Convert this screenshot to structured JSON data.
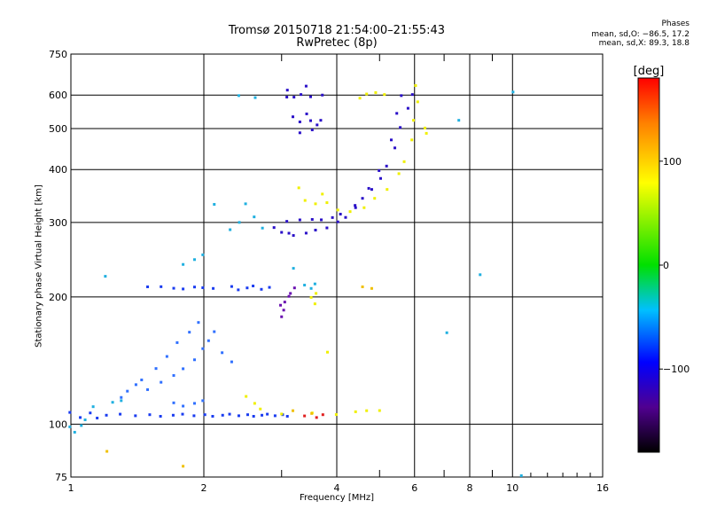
{
  "header": {
    "title_line1": "Tromsø 20150718 21:54:00–21:55:43",
    "title_line2": "RwPretec (8p)",
    "phases_title": "Phases",
    "phases_o": "mean, sd,O: −86.5, 17.2",
    "phases_x": "mean, sd,X:  89.3, 18.8"
  },
  "colors": {
    "blue": "#1a3cf0",
    "darkblue": "#2a10c8",
    "midblue": "#3070ff",
    "cyan": "#20b0e0",
    "yellow": "#f0f000",
    "orange": "#f0c000",
    "purple": "#6a10b0",
    "red": "#e02020"
  },
  "chart_data": {
    "type": "scatter",
    "xlabel": "Frequency [MHz]",
    "ylabel": "Stationary phase Virtual Height [km]",
    "x_scale": "log",
    "y_scale": "log",
    "xlim": [
      1,
      16
    ],
    "ylim": [
      75,
      750
    ],
    "x_ticks": [
      1,
      2,
      4,
      6,
      8,
      10,
      16
    ],
    "x_minor_ticks": [
      3,
      5,
      7,
      9
    ],
    "y_ticks": [
      75,
      100,
      200,
      300,
      400,
      500,
      600,
      750
    ],
    "grid": true,
    "colorbar": {
      "label": "[deg]",
      "ticks": [
        100,
        0,
        -100
      ],
      "range": [
        -180,
        180
      ]
    },
    "series": [
      {
        "color": "blue",
        "points": [
          [
            1.0,
            106
          ],
          [
            1.05,
            104
          ],
          [
            1.1,
            106
          ],
          [
            1.15,
            104
          ],
          [
            1.2,
            105
          ],
          [
            1.3,
            105
          ],
          [
            1.4,
            105
          ],
          [
            1.5,
            105
          ],
          [
            1.6,
            105
          ],
          [
            1.7,
            105
          ],
          [
            1.8,
            105
          ],
          [
            1.9,
            105
          ],
          [
            2.0,
            105
          ],
          [
            2.1,
            105
          ],
          [
            2.2,
            105
          ],
          [
            2.3,
            105
          ],
          [
            2.4,
            105
          ],
          [
            2.5,
            105
          ],
          [
            2.6,
            105
          ],
          [
            2.7,
            105
          ],
          [
            2.8,
            105
          ],
          [
            2.9,
            105
          ],
          [
            3.0,
            105
          ],
          [
            3.1,
            105
          ]
        ]
      },
      {
        "color": "cyan",
        "points": [
          [
            1.0,
            98
          ],
          [
            1.02,
            96
          ],
          [
            1.05,
            99
          ],
          [
            1.08,
            103
          ],
          [
            1.12,
            110
          ],
          [
            1.25,
            112
          ],
          [
            1.3,
            114
          ],
          [
            2.1,
            330
          ],
          [
            2.3,
            290
          ],
          [
            2.4,
            300
          ],
          [
            2.5,
            330
          ],
          [
            2.6,
            310
          ],
          [
            2.7,
            290
          ],
          [
            1.8,
            240
          ],
          [
            1.9,
            245
          ],
          [
            2.0,
            250
          ],
          [
            2.4,
            600
          ],
          [
            2.6,
            590
          ],
          [
            1.2,
            225
          ]
        ]
      },
      {
        "color": "midblue",
        "points": [
          [
            1.5,
            120
          ],
          [
            1.6,
            126
          ],
          [
            1.7,
            130
          ],
          [
            1.8,
            136
          ],
          [
            1.9,
            142
          ],
          [
            2.0,
            150
          ],
          [
            2.05,
            158
          ],
          [
            2.1,
            165
          ],
          [
            1.95,
            175
          ],
          [
            1.85,
            165
          ],
          [
            1.75,
            155
          ],
          [
            1.65,
            145
          ],
          [
            1.55,
            135
          ],
          [
            1.45,
            128
          ],
          [
            1.4,
            124
          ],
          [
            1.35,
            119
          ],
          [
            1.3,
            116
          ],
          [
            1.7,
            112
          ],
          [
            1.8,
            111
          ],
          [
            1.9,
            112
          ],
          [
            2.0,
            113
          ],
          [
            2.2,
            148
          ],
          [
            2.3,
            140
          ]
        ]
      },
      {
        "color": "blue",
        "points": [
          [
            1.5,
            210
          ],
          [
            1.6,
            212
          ],
          [
            1.7,
            209
          ],
          [
            1.8,
            210
          ],
          [
            1.9,
            211
          ],
          [
            2.0,
            209
          ],
          [
            2.1,
            210
          ],
          [
            2.3,
            211
          ],
          [
            2.4,
            209
          ],
          [
            2.5,
            210
          ],
          [
            2.6,
            211
          ],
          [
            2.7,
            209
          ],
          [
            2.8,
            210
          ]
        ]
      },
      {
        "color": "darkblue",
        "points": [
          [
            2.9,
            290
          ],
          [
            3.0,
            285
          ],
          [
            3.1,
            282
          ],
          [
            3.2,
            281
          ],
          [
            3.4,
            283
          ],
          [
            3.6,
            286
          ],
          [
            3.8,
            292
          ],
          [
            4.0,
            300
          ],
          [
            4.2,
            310
          ],
          [
            4.4,
            325
          ],
          [
            4.6,
            340
          ],
          [
            4.8,
            360
          ],
          [
            5.0,
            380
          ],
          [
            5.2,
            410
          ],
          [
            5.4,
            450
          ],
          [
            5.6,
            500
          ],
          [
            5.8,
            560
          ],
          [
            5.9,
            600
          ]
        ]
      },
      {
        "color": "darkblue",
        "points": [
          [
            3.1,
            300
          ],
          [
            3.3,
            305
          ],
          [
            3.5,
            304
          ],
          [
            3.7,
            306
          ],
          [
            3.9,
            308
          ],
          [
            4.1,
            312
          ],
          [
            4.4,
            330
          ],
          [
            4.7,
            360
          ],
          [
            5.0,
            400
          ],
          [
            5.3,
            470
          ],
          [
            5.5,
            540
          ],
          [
            5.6,
            600
          ]
        ]
      },
      {
        "color": "darkblue",
        "points": [
          [
            3.1,
            590
          ],
          [
            3.2,
            595
          ],
          [
            3.3,
            600
          ],
          [
            3.5,
            598
          ],
          [
            3.7,
            600
          ],
          [
            3.2,
            530
          ],
          [
            3.3,
            520
          ],
          [
            3.4,
            540
          ],
          [
            3.5,
            525
          ],
          [
            3.6,
            510
          ],
          [
            3.7,
            520
          ],
          [
            3.3,
            490
          ],
          [
            3.5,
            495
          ],
          [
            3.1,
            620
          ],
          [
            3.4,
            630
          ]
        ]
      },
      {
        "color": "purple",
        "points": [
          [
            3.0,
            190
          ],
          [
            3.05,
            195
          ],
          [
            3.1,
            200
          ],
          [
            3.15,
            205
          ],
          [
            3.2,
            210
          ],
          [
            3.05,
            185
          ],
          [
            3.0,
            180
          ]
        ]
      },
      {
        "color": "yellow",
        "points": [
          [
            3.6,
            330
          ],
          [
            3.8,
            335
          ],
          [
            4.0,
            320
          ],
          [
            4.3,
            320
          ],
          [
            4.6,
            325
          ],
          [
            4.9,
            340
          ],
          [
            5.2,
            360
          ],
          [
            5.5,
            390
          ],
          [
            5.7,
            420
          ],
          [
            5.9,
            470
          ],
          [
            6.0,
            520
          ],
          [
            6.1,
            580
          ],
          [
            6.0,
            630
          ],
          [
            3.4,
            340
          ],
          [
            3.7,
            350
          ],
          [
            3.3,
            360
          ],
          [
            3.5,
            200
          ],
          [
            3.55,
            192
          ],
          [
            3.6,
            205
          ],
          [
            4.5,
            590
          ],
          [
            4.7,
            600
          ],
          [
            4.9,
            610
          ],
          [
            5.1,
            600
          ],
          [
            2.5,
            117
          ],
          [
            2.6,
            112
          ],
          [
            2.7,
            108
          ],
          [
            3.0,
            106
          ],
          [
            3.5,
            106
          ],
          [
            4.0,
            106
          ],
          [
            4.4,
            107
          ],
          [
            4.7,
            107
          ],
          [
            5.0,
            108
          ],
          [
            6.3,
            500
          ],
          [
            6.4,
            490
          ],
          [
            3.8,
            148
          ]
        ]
      },
      {
        "color": "orange",
        "points": [
          [
            4.6,
            210
          ],
          [
            4.8,
            210
          ],
          [
            1.2,
            86
          ],
          [
            1.8,
            80
          ],
          [
            3.5,
            106
          ],
          [
            3.2,
            107
          ]
        ]
      },
      {
        "color": "red",
        "points": [
          [
            3.4,
            104
          ],
          [
            3.6,
            104
          ],
          [
            3.7,
            105
          ]
        ]
      },
      {
        "color": "cyan",
        "points": [
          [
            3.4,
            212
          ],
          [
            3.5,
            210
          ],
          [
            3.55,
            214
          ],
          [
            3.2,
            235
          ],
          [
            10.0,
            610
          ],
          [
            7.6,
            520
          ],
          [
            7.1,
            165
          ],
          [
            8.4,
            225
          ],
          [
            10.5,
            76
          ]
        ]
      }
    ]
  }
}
